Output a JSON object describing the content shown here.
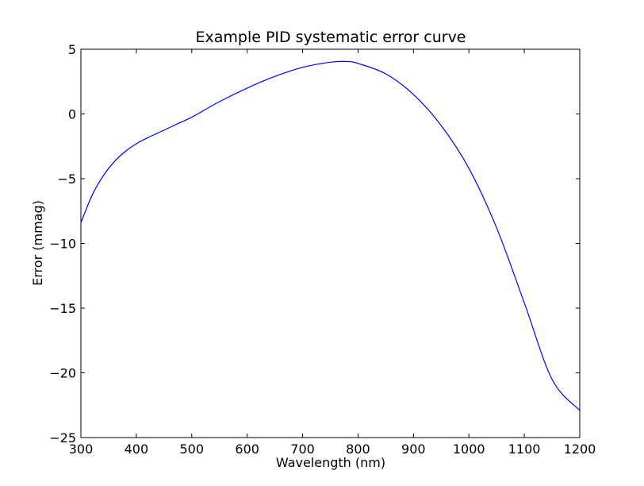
{
  "chart_data": {
    "type": "line",
    "title": "Example PID systematic error curve",
    "xlabel": "Wavelength (nm)",
    "ylabel": "Error (mmag)",
    "xlim": [
      300,
      1200
    ],
    "ylim": [
      -25,
      5
    ],
    "xticks": [
      300,
      400,
      500,
      600,
      700,
      800,
      900,
      1000,
      1100,
      1200
    ],
    "yticks": [
      5,
      0,
      -5,
      -10,
      -15,
      -20,
      -25
    ],
    "xtick_labels": [
      "300",
      "400",
      "500",
      "600",
      "700",
      "800",
      "900",
      "1000",
      "1100",
      "1200"
    ],
    "ytick_labels": [
      "5",
      "0",
      "−5",
      "−10",
      "−15",
      "−20",
      "−25"
    ],
    "grid": false,
    "series": [
      {
        "color": "#0000ff",
        "x": [
          300,
          320,
          340,
          360,
          380,
          400,
          420,
          440,
          460,
          480,
          500,
          550,
          600,
          650,
          700,
          750,
          780,
          800,
          850,
          900,
          950,
          1000,
          1050,
          1100,
          1150,
          1200
        ],
        "y": [
          -8.4,
          -6.3,
          -4.8,
          -3.7,
          -2.9,
          -2.3,
          -1.85,
          -1.45,
          -1.05,
          -0.65,
          -0.25,
          0.95,
          2.0,
          2.9,
          3.6,
          4.0,
          4.05,
          3.9,
          3.1,
          1.5,
          -0.9,
          -4.2,
          -8.8,
          -14.6,
          -20.5,
          -22.9
        ]
      }
    ]
  }
}
